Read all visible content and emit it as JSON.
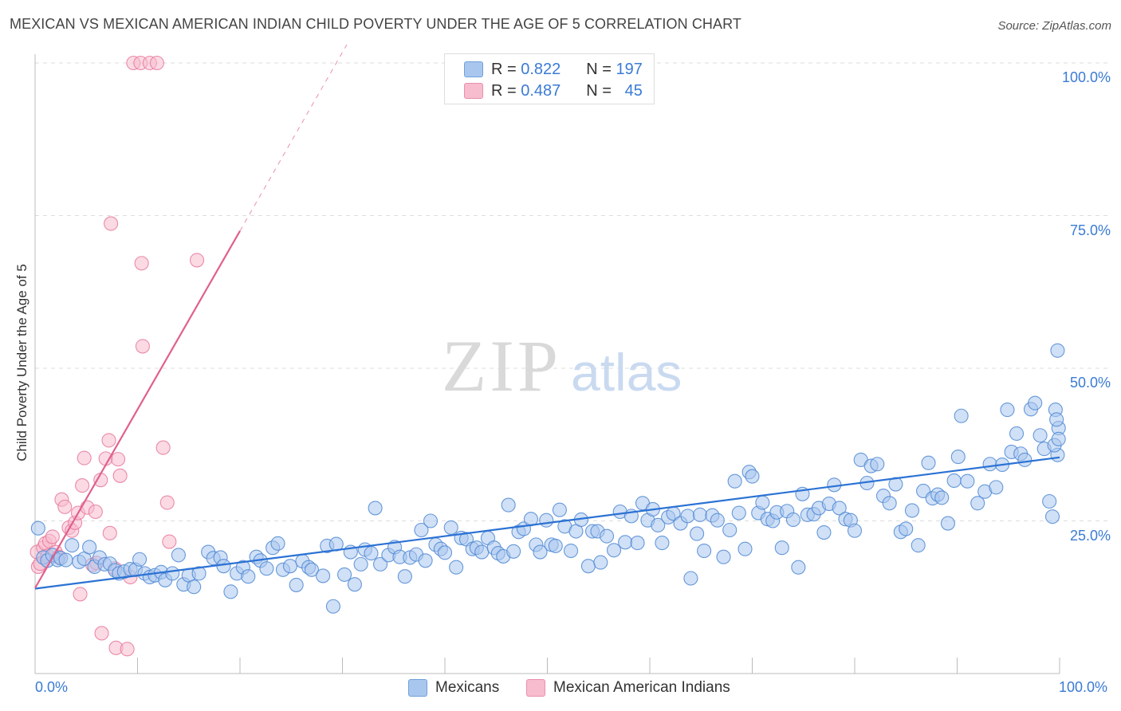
{
  "header": {
    "title": "MEXICAN VS MEXICAN AMERICAN INDIAN CHILD POVERTY UNDER THE AGE OF 5 CORRELATION CHART",
    "source": "Source: ZipAtlas.com"
  },
  "watermark": {
    "zip": "ZIP",
    "atlas": "atlas"
  },
  "legend": {
    "rows": [
      {
        "r_label": "R =",
        "r_value": "0.822",
        "n_label": "N =",
        "n_value": "197",
        "color": "#7fa9e0"
      },
      {
        "r_label": "R =",
        "r_value": "0.487",
        "n_label": "N =",
        "n_value": "45",
        "color": "#f2a0b8"
      }
    ]
  },
  "colors": {
    "mexicans_fill": "#a9c7ee",
    "mexicans_stroke": "#4f88d4",
    "mai_fill": "#f7bccd",
    "mai_stroke": "#e8799b",
    "blue_line": "#2b72d4",
    "pink_line": "#e0608d",
    "axis_text": "#3a7bd5"
  },
  "chart_data": {
    "type": "scatter",
    "title": "MEXICAN VS MEXICAN AMERICAN INDIAN CHILD POVERTY UNDER THE AGE OF 5 CORRELATION CHART",
    "xlabel": "",
    "ylabel": "Child Poverty Under the Age of 5",
    "xlim": [
      0,
      100
    ],
    "ylim": [
      0,
      100
    ],
    "x_tick_labels": [
      "0.0%",
      "100.0%"
    ],
    "y_tick_labels": [
      "25.0%",
      "50.0%",
      "75.0%",
      "100.0%"
    ],
    "y_ticks": [
      25,
      50,
      75,
      100
    ],
    "grid": true,
    "legend_position": "bottom-center",
    "series": [
      {
        "name": "Mexicans",
        "trend": {
          "x": [
            0,
            100
          ],
          "y": [
            13.9,
            35.4
          ]
        },
        "points": [
          [
            0.3,
            23.8
          ],
          [
            0.8,
            19.0
          ],
          [
            1.2,
            18.5
          ],
          [
            1.7,
            19.4
          ],
          [
            2.2,
            18.6
          ],
          [
            2.5,
            18.9
          ],
          [
            3.0,
            18.6
          ],
          [
            3.6,
            21.0
          ],
          [
            4.3,
            18.3
          ],
          [
            4.8,
            18.8
          ],
          [
            5.3,
            20.7
          ],
          [
            5.8,
            17.5
          ],
          [
            6.3,
            19.0
          ],
          [
            6.8,
            17.9
          ],
          [
            7.3,
            18.0
          ],
          [
            7.8,
            16.9
          ],
          [
            8.2,
            16.4
          ],
          [
            8.7,
            16.7
          ],
          [
            9.3,
            17.1
          ],
          [
            9.8,
            17.0
          ],
          [
            10.2,
            18.7
          ],
          [
            10.7,
            16.4
          ],
          [
            11.2,
            15.8
          ],
          [
            11.7,
            16.1
          ],
          [
            12.3,
            16.6
          ],
          [
            12.7,
            15.3
          ],
          [
            13.4,
            16.4
          ],
          [
            14.0,
            19.4
          ],
          [
            14.5,
            14.6
          ],
          [
            15.0,
            16.1
          ],
          [
            15.5,
            14.2
          ],
          [
            16.0,
            16.4
          ],
          [
            16.9,
            19.9
          ],
          [
            17.4,
            18.9
          ],
          [
            18.1,
            19.0
          ],
          [
            18.4,
            17.6
          ],
          [
            19.1,
            13.4
          ],
          [
            19.7,
            16.4
          ],
          [
            20.3,
            17.4
          ],
          [
            20.8,
            15.9
          ],
          [
            21.6,
            19.1
          ],
          [
            22.0,
            18.5
          ],
          [
            22.6,
            17.2
          ],
          [
            23.2,
            20.6
          ],
          [
            23.7,
            21.3
          ],
          [
            24.2,
            17.0
          ],
          [
            24.9,
            17.6
          ],
          [
            25.5,
            14.5
          ],
          [
            26.1,
            18.4
          ],
          [
            26.7,
            17.4
          ],
          [
            27.0,
            17.0
          ],
          [
            28.1,
            16.0
          ],
          [
            28.5,
            20.9
          ],
          [
            29.1,
            11.0
          ],
          [
            29.4,
            21.2
          ],
          [
            30.2,
            16.2
          ],
          [
            30.8,
            19.9
          ],
          [
            31.2,
            14.6
          ],
          [
            31.8,
            17.9
          ],
          [
            32.2,
            20.3
          ],
          [
            32.8,
            19.7
          ],
          [
            33.2,
            27.1
          ],
          [
            33.7,
            17.9
          ],
          [
            34.5,
            19.4
          ],
          [
            35.1,
            20.7
          ],
          [
            35.6,
            19.1
          ],
          [
            36.1,
            15.9
          ],
          [
            36.6,
            19.0
          ],
          [
            37.2,
            19.5
          ],
          [
            37.7,
            23.5
          ],
          [
            38.1,
            18.5
          ],
          [
            38.6,
            25.0
          ],
          [
            39.1,
            21.1
          ],
          [
            39.6,
            20.4
          ],
          [
            40.0,
            19.8
          ],
          [
            40.6,
            23.9
          ],
          [
            41.1,
            17.4
          ],
          [
            41.6,
            22.2
          ],
          [
            42.1,
            22.0
          ],
          [
            42.7,
            20.4
          ],
          [
            43.1,
            20.6
          ],
          [
            43.6,
            19.9
          ],
          [
            44.2,
            22.2
          ],
          [
            44.8,
            20.6
          ],
          [
            45.2,
            19.7
          ],
          [
            45.7,
            19.2
          ],
          [
            46.2,
            27.6
          ],
          [
            46.7,
            20.0
          ],
          [
            47.2,
            23.2
          ],
          [
            47.7,
            23.7
          ],
          [
            48.4,
            25.3
          ],
          [
            48.9,
            21.1
          ],
          [
            49.3,
            19.9
          ],
          [
            49.9,
            25.1
          ],
          [
            50.4,
            21.1
          ],
          [
            50.8,
            20.9
          ],
          [
            51.2,
            26.8
          ],
          [
            51.7,
            24.1
          ],
          [
            52.3,
            20.1
          ],
          [
            52.8,
            23.3
          ],
          [
            53.3,
            25.2
          ],
          [
            54.0,
            17.6
          ],
          [
            54.4,
            23.3
          ],
          [
            54.9,
            23.3
          ],
          [
            55.2,
            18.2
          ],
          [
            55.8,
            22.5
          ],
          [
            56.5,
            20.2
          ],
          [
            57.1,
            26.5
          ],
          [
            57.6,
            21.5
          ],
          [
            58.2,
            25.8
          ],
          [
            58.8,
            21.4
          ],
          [
            59.3,
            27.9
          ],
          [
            59.8,
            25.1
          ],
          [
            60.3,
            26.9
          ],
          [
            60.8,
            24.3
          ],
          [
            61.2,
            21.4
          ],
          [
            61.8,
            25.6
          ],
          [
            62.3,
            26.2
          ],
          [
            63.0,
            24.6
          ],
          [
            63.7,
            25.8
          ],
          [
            64.0,
            15.6
          ],
          [
            64.6,
            22.9
          ],
          [
            64.9,
            26.0
          ],
          [
            65.3,
            20.1
          ],
          [
            66.1,
            25.9
          ],
          [
            66.6,
            25.1
          ],
          [
            67.2,
            19.1
          ],
          [
            67.8,
            23.5
          ],
          [
            68.3,
            31.5
          ],
          [
            68.7,
            26.3
          ],
          [
            69.3,
            20.4
          ],
          [
            69.7,
            33.0
          ],
          [
            70.0,
            32.3
          ],
          [
            70.6,
            26.3
          ],
          [
            71.0,
            28.0
          ],
          [
            71.5,
            25.3
          ],
          [
            72.0,
            25.0
          ],
          [
            72.4,
            26.4
          ],
          [
            72.9,
            20.6
          ],
          [
            73.4,
            26.6
          ],
          [
            74.0,
            25.2
          ],
          [
            74.5,
            17.4
          ],
          [
            74.9,
            29.4
          ],
          [
            75.4,
            26.0
          ],
          [
            76.0,
            26.1
          ],
          [
            76.5,
            27.1
          ],
          [
            77.0,
            23.1
          ],
          [
            77.5,
            27.8
          ],
          [
            78.0,
            30.9
          ],
          [
            78.5,
            27.1
          ],
          [
            79.1,
            25.3
          ],
          [
            79.6,
            25.1
          ],
          [
            80.0,
            23.4
          ],
          [
            80.6,
            35.0
          ],
          [
            81.2,
            31.2
          ],
          [
            81.6,
            34.0
          ],
          [
            82.2,
            34.3
          ],
          [
            82.8,
            29.1
          ],
          [
            83.4,
            27.9
          ],
          [
            84.0,
            31.0
          ],
          [
            84.5,
            23.2
          ],
          [
            85.0,
            23.7
          ],
          [
            85.6,
            26.7
          ],
          [
            86.2,
            21.0
          ],
          [
            86.7,
            29.9
          ],
          [
            87.2,
            34.5
          ],
          [
            87.6,
            28.7
          ],
          [
            88.1,
            29.3
          ],
          [
            88.5,
            28.8
          ],
          [
            89.1,
            24.6
          ],
          [
            89.7,
            31.6
          ],
          [
            90.1,
            35.5
          ],
          [
            90.4,
            42.2
          ],
          [
            91.0,
            31.5
          ],
          [
            92.0,
            27.9
          ],
          [
            92.7,
            29.8
          ],
          [
            93.2,
            34.3
          ],
          [
            93.8,
            30.5
          ],
          [
            94.4,
            34.2
          ],
          [
            94.9,
            43.2
          ],
          [
            95.3,
            36.3
          ],
          [
            95.8,
            39.3
          ],
          [
            96.2,
            36.0
          ],
          [
            96.6,
            35.0
          ],
          [
            97.2,
            43.3
          ],
          [
            97.6,
            44.3
          ],
          [
            98.1,
            39.0
          ],
          [
            98.5,
            36.8
          ],
          [
            99.0,
            28.2
          ],
          [
            99.3,
            25.7
          ],
          [
            99.6,
            43.2
          ],
          [
            99.8,
            35.8
          ],
          [
            99.9,
            40.2
          ],
          [
            99.7,
            41.6
          ],
          [
            99.8,
            52.9
          ],
          [
            99.5,
            37.4
          ],
          [
            99.9,
            38.4
          ]
        ]
      },
      {
        "name": "Mexican American Indians",
        "trend": {
          "x": [
            0,
            20
          ],
          "y": [
            14.0,
            72.5
          ]
        },
        "points": [
          [
            0.2,
            19.9
          ],
          [
            0.3,
            17.5
          ],
          [
            0.5,
            18.0
          ],
          [
            0.8,
            20.6
          ],
          [
            1.0,
            21.3
          ],
          [
            1.2,
            19.3
          ],
          [
            1.4,
            21.7
          ],
          [
            1.7,
            22.4
          ],
          [
            2.0,
            19.9
          ],
          [
            2.3,
            19.1
          ],
          [
            2.6,
            28.5
          ],
          [
            2.9,
            27.3
          ],
          [
            3.3,
            23.9
          ],
          [
            3.6,
            23.4
          ],
          [
            3.9,
            24.7
          ],
          [
            4.2,
            26.3
          ],
          [
            4.4,
            13.0
          ],
          [
            4.6,
            30.8
          ],
          [
            4.8,
            35.3
          ],
          [
            5.1,
            27.2
          ],
          [
            5.6,
            17.8
          ],
          [
            5.9,
            26.5
          ],
          [
            6.4,
            31.7
          ],
          [
            6.5,
            6.6
          ],
          [
            6.9,
            35.2
          ],
          [
            7.2,
            38.2
          ],
          [
            7.3,
            23.0
          ],
          [
            7.4,
            73.7
          ],
          [
            7.8,
            17.2
          ],
          [
            7.9,
            4.2
          ],
          [
            8.1,
            35.1
          ],
          [
            8.3,
            32.4
          ],
          [
            9.0,
            4.0
          ],
          [
            9.3,
            15.8
          ],
          [
            9.6,
            100.0
          ],
          [
            10.3,
            100.0
          ],
          [
            10.4,
            67.2
          ],
          [
            10.5,
            53.6
          ],
          [
            11.2,
            100.0
          ],
          [
            11.9,
            100.0
          ],
          [
            12.5,
            37.0
          ],
          [
            12.9,
            28.0
          ],
          [
            13.1,
            21.6
          ],
          [
            15.8,
            67.7
          ],
          [
            6.0,
            18.1
          ]
        ]
      }
    ]
  }
}
